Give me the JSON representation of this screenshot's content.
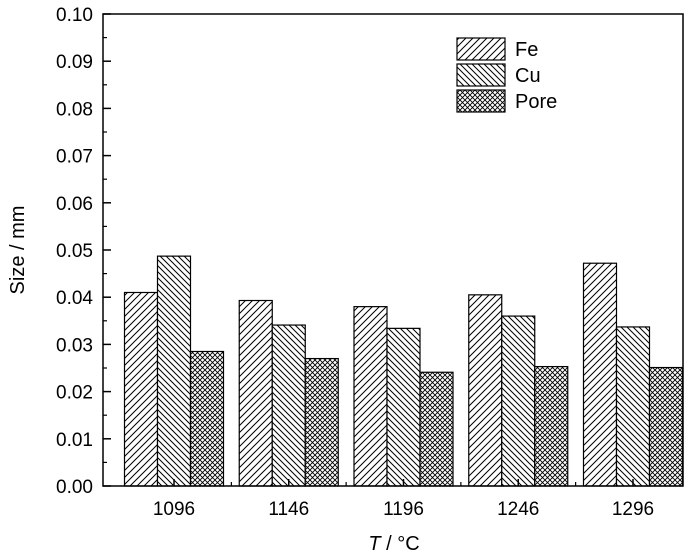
{
  "chart_data": {
    "type": "bar",
    "categories": [
      "1096",
      "1146",
      "1196",
      "1246",
      "1296"
    ],
    "series": [
      {
        "name": "Fe",
        "values": [
          0.041,
          0.0393,
          0.038,
          0.0405,
          0.0472
        ],
        "pattern": "diagonal-up"
      },
      {
        "name": "Cu",
        "values": [
          0.0487,
          0.0341,
          0.0334,
          0.036,
          0.0337
        ],
        "pattern": "diagonal-down"
      },
      {
        "name": "Pore",
        "values": [
          0.0285,
          0.027,
          0.0241,
          0.0253,
          0.0251
        ],
        "pattern": "crosshatch"
      }
    ],
    "ylim": [
      0,
      0.1
    ],
    "yticks": [
      "0.00",
      "0.01",
      "0.02",
      "0.03",
      "0.04",
      "0.05",
      "0.06",
      "0.07",
      "0.08",
      "0.09",
      "0.10"
    ],
    "ylabel": "Size / mm",
    "xlabel_italic": "T",
    "xlabel_rest": " / °C",
    "legend_position": "top-right",
    "grid": false
  }
}
